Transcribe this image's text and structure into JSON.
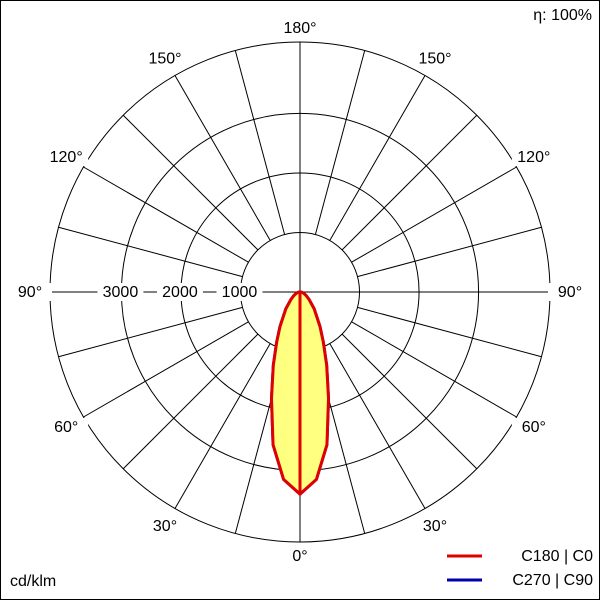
{
  "chart_data": {
    "type": "polar",
    "annotation": "η: 100%",
    "unit_label": "cd/klm",
    "angles": [
      0,
      5,
      10,
      15,
      20,
      25,
      30,
      40,
      50,
      60,
      70,
      80,
      90
    ],
    "series": [
      {
        "name": "C270 | C90",
        "color": "#0000b0",
        "values": [
          3395,
          3160,
          2605,
          1850,
          1310,
          925,
          672,
          370,
          200,
          118,
          67,
          34,
          0
        ]
      },
      {
        "name": "C180 | C0",
        "color": "#e00000",
        "fill": "#ffff80",
        "values": [
          3395,
          3160,
          2605,
          1850,
          1310,
          925,
          672,
          370,
          200,
          118,
          67,
          34,
          0
        ]
      }
    ],
    "rlim": [
      0,
      4200
    ],
    "rticks": [
      1000,
      2000,
      3000
    ],
    "angle_grid_step": 15,
    "angle_ticks": [
      {
        "value": 0,
        "label": "0°"
      },
      {
        "value": 30,
        "label": "30°"
      },
      {
        "value": 60,
        "label": "60°"
      },
      {
        "value": 90,
        "label": "90°"
      },
      {
        "value": 120,
        "label": "120°"
      },
      {
        "value": 150,
        "label": "150°"
      },
      {
        "value": 180,
        "label": "180°"
      }
    ]
  }
}
